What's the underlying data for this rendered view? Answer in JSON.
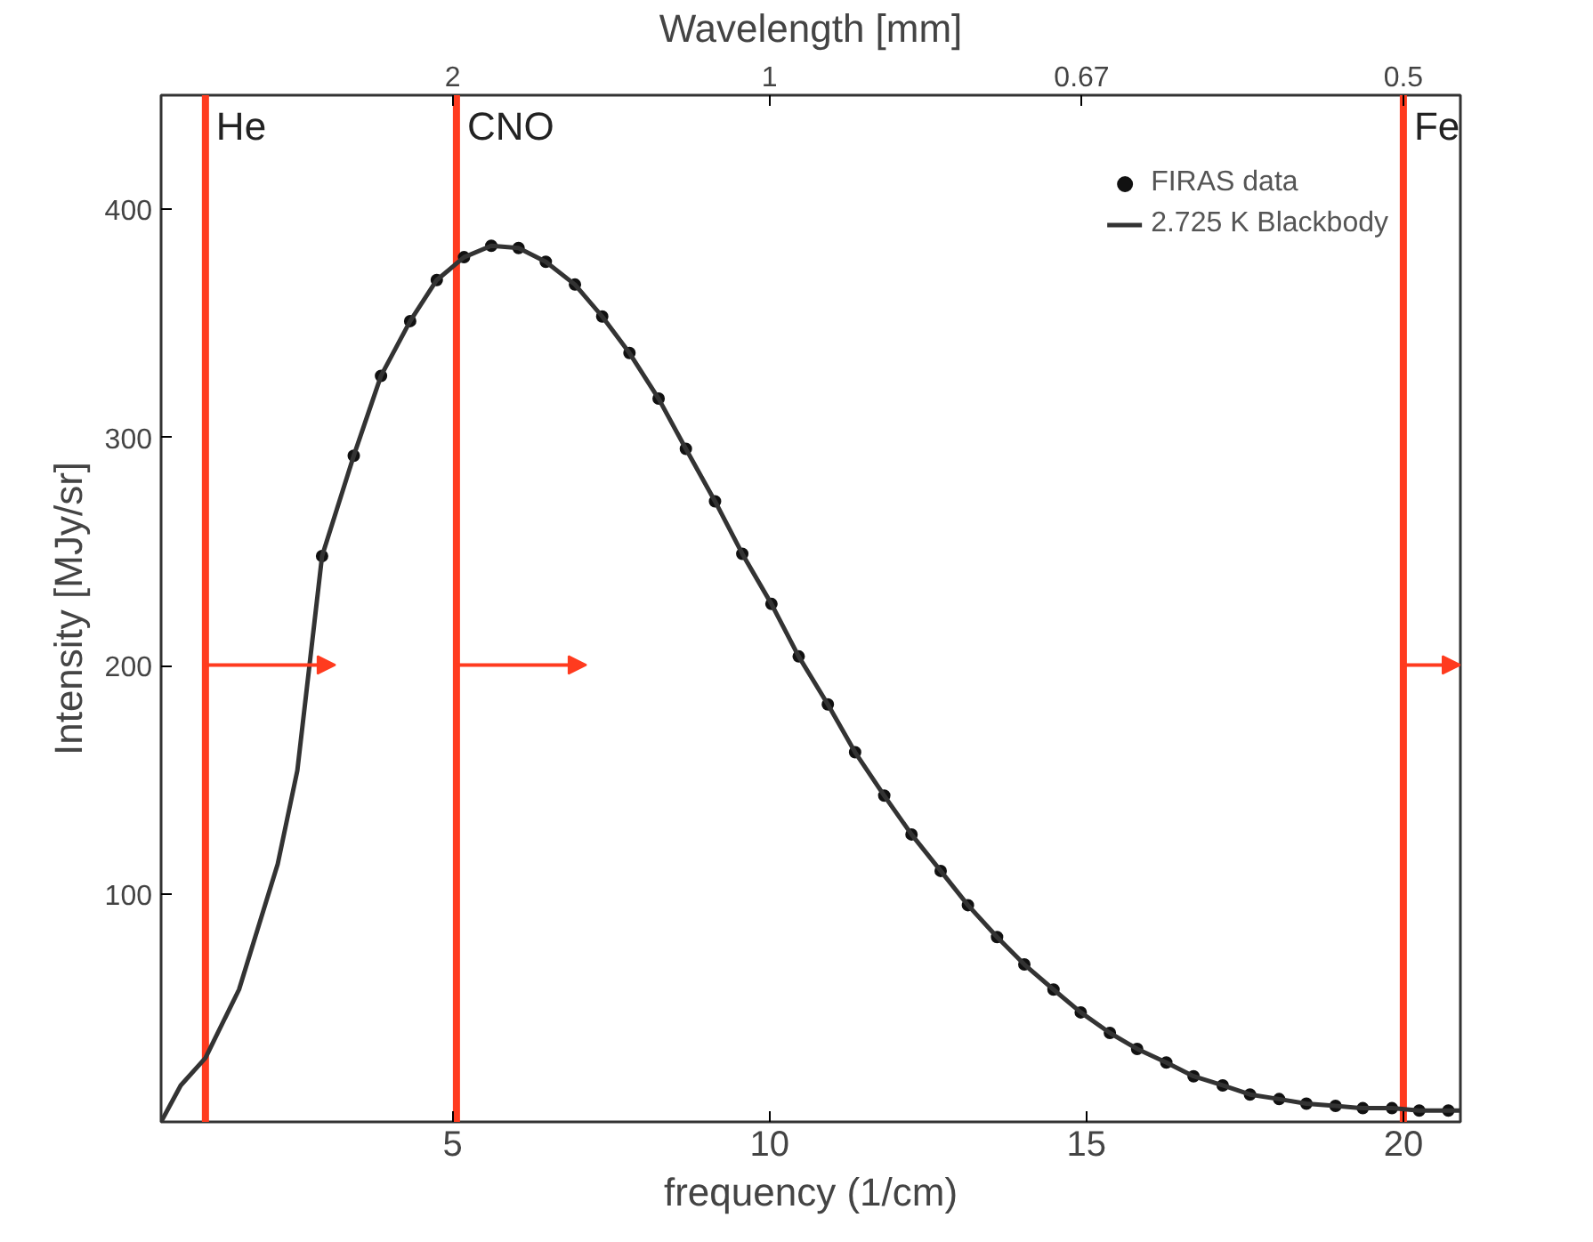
{
  "chart_data": {
    "type": "line",
    "xlabel": "frequency (1/cm)",
    "ylabel": "Intensity [MJy/sr]",
    "x2label": "Wavelength [mm]",
    "xlim": [
      0.4,
      20.9
    ],
    "ylim": [
      0,
      450
    ],
    "xticks": [
      5,
      10,
      15,
      20
    ],
    "yticks": [
      100,
      200,
      300,
      400
    ],
    "annotations": [
      "2",
      "1",
      "0.67",
      "0.5"
    ],
    "series": [
      {
        "name": "FIRAS data",
        "type": "scatter",
        "marker": "circle",
        "color": "#111111",
        "x": [
          2.94,
          3.44,
          3.87,
          4.33,
          4.75,
          5.18,
          5.61,
          6.04,
          6.47,
          6.93,
          7.36,
          7.79,
          8.25,
          8.68,
          9.14,
          9.57,
          10.03,
          10.46,
          10.92,
          11.35,
          11.81,
          12.24,
          12.7,
          13.13,
          13.59,
          14.02,
          14.48,
          14.91,
          15.37,
          15.8,
          16.26,
          16.69,
          17.15,
          17.58,
          18.04,
          18.47,
          18.93,
          19.36,
          19.82,
          20.25,
          20.71
        ],
        "values": [
          248,
          292,
          327,
          351,
          369,
          379,
          384,
          383,
          377,
          367,
          353,
          337,
          317,
          295,
          272,
          249,
          227,
          204,
          183,
          162,
          143,
          126,
          110,
          95,
          81,
          69,
          58,
          48,
          39,
          32,
          26,
          20,
          16,
          12,
          10,
          8,
          7,
          6,
          6,
          5,
          5
        ]
      },
      {
        "name": "2.725 K Blackbody",
        "color": "#333333",
        "x": [
          0.4,
          0.71,
          1.1,
          1.63,
          2.24,
          2.55,
          2.94,
          3.44,
          3.87,
          4.33,
          4.75,
          5.18,
          5.61,
          6.04,
          6.47,
          6.93,
          7.36,
          7.79,
          8.25,
          8.68,
          9.14,
          9.57,
          10.03,
          10.46,
          10.92,
          11.35,
          11.81,
          12.24,
          12.7,
          13.13,
          13.59,
          14.02,
          14.48,
          14.91,
          15.37,
          15.8,
          16.26,
          16.69,
          17.15,
          17.58,
          18.04,
          18.47,
          18.93,
          19.36,
          19.82,
          20.25,
          20.71,
          20.9
        ],
        "values": [
          0,
          16,
          28,
          58,
          113,
          154,
          248,
          292,
          327,
          351,
          369,
          379,
          384,
          383,
          377,
          367,
          353,
          337,
          317,
          295,
          272,
          249,
          227,
          204,
          183,
          162,
          143,
          126,
          110,
          95,
          81,
          69,
          58,
          48,
          39,
          32,
          26,
          20,
          16,
          12,
          10,
          8,
          7,
          6,
          6,
          5,
          5,
          5
        ]
      }
    ],
    "ref_lines": [
      {
        "axis": "x",
        "value": 1.1,
        "label": "He",
        "color": "#ff3b1f"
      },
      {
        "axis": "x",
        "value": 5.06,
        "label": "CNO",
        "color": "#ff3b1f"
      },
      {
        "axis": "x",
        "value": 20.0,
        "label": "Fe",
        "color": "#ff3b1f"
      }
    ],
    "legend": "top right",
    "grid": false
  }
}
